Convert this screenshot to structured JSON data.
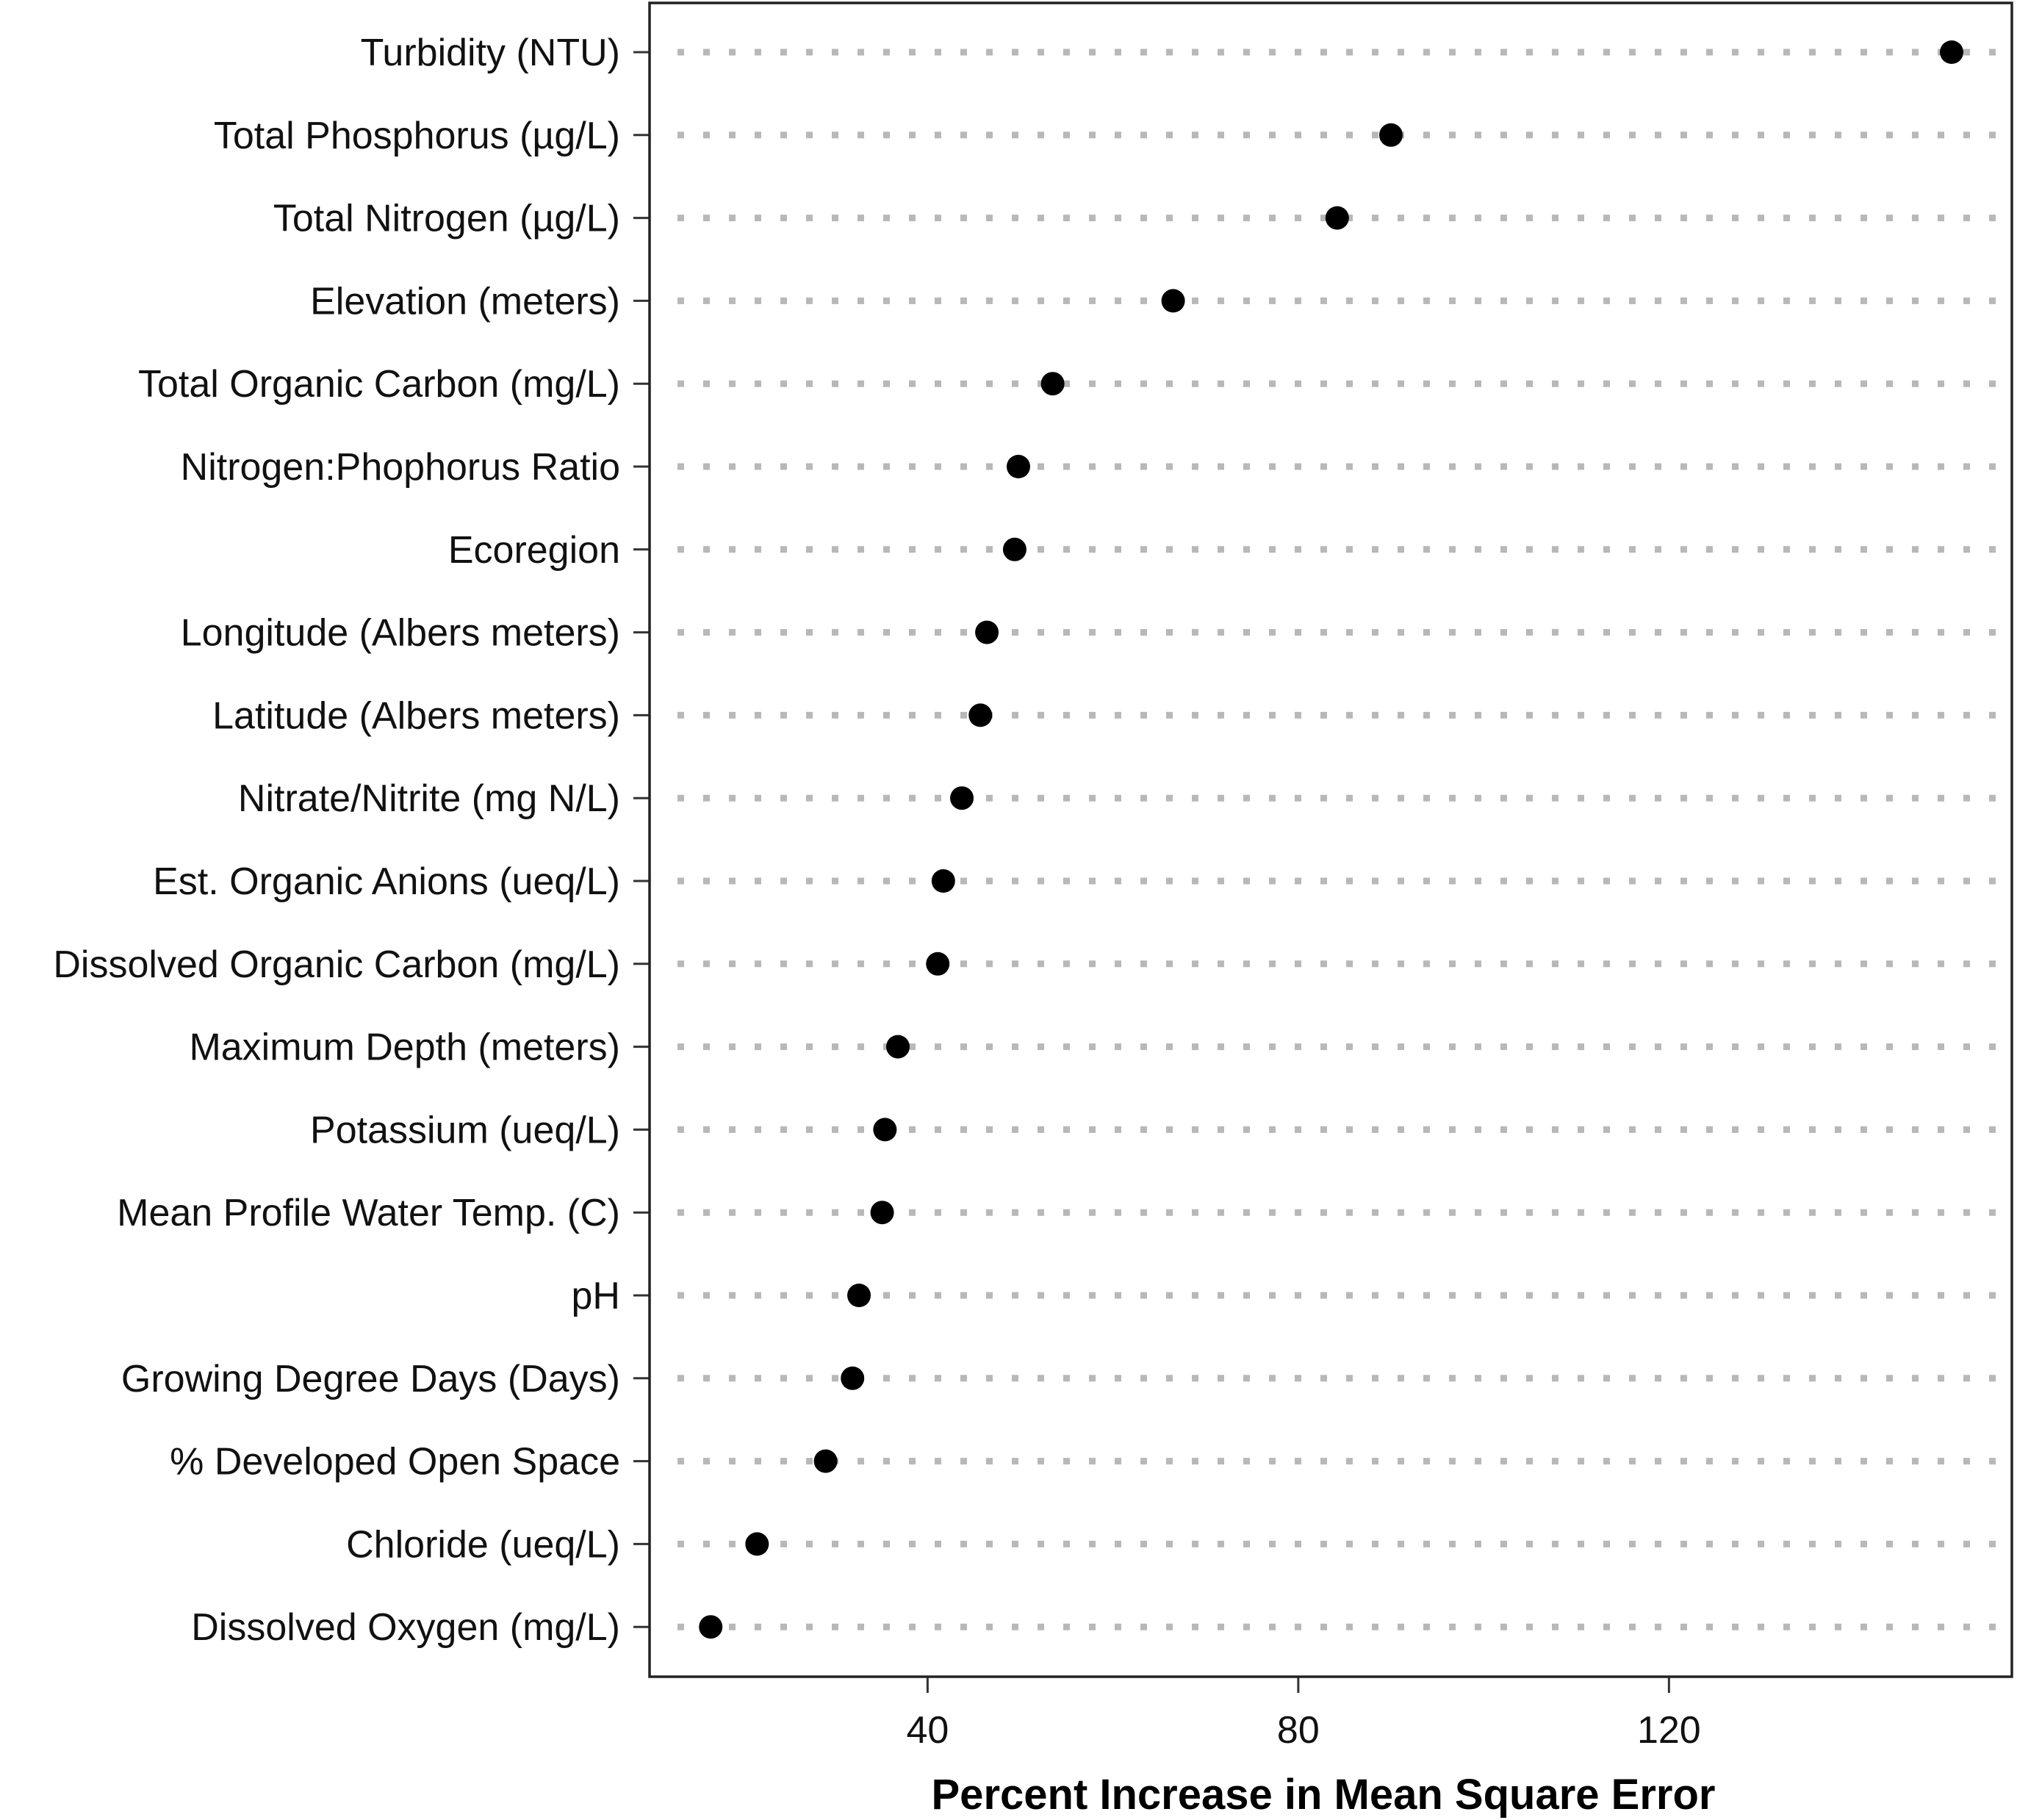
{
  "chart_data": {
    "type": "scatter",
    "title": "",
    "xlabel": "Percent Increase in Mean Square Error",
    "ylabel": "",
    "xlim": [
      10,
      157
    ],
    "x_ticks": [
      40,
      80,
      120
    ],
    "x_tick_labels": [
      "40",
      "80",
      "120"
    ],
    "grid": false,
    "legend": "none",
    "marker_color": "#000000",
    "guide_color": "#b8b8b8",
    "categories": [
      "Turbidity (NTU)",
      "Total Phosphorus (µg/L)",
      "Total Nitrogen (µg/L)",
      "Elevation (meters)",
      "Total Organic Carbon (mg/L)",
      "Nitrogen:Phophorus Ratio",
      "Ecoregion",
      "Longitude (Albers meters)",
      "Latitude  (Albers meters)",
      "Nitrate/Nitrite (mg N/L)",
      "Est. Organic Anions (ueq/L)",
      "Dissolved Organic Carbon (mg/L)",
      "Maximum Depth (meters)",
      "Potassium (ueq/L)",
      "Mean Profile Water Temp. (C)",
      "pH",
      "Growing Degree Days (Days)",
      "% Developed Open Space",
      "Chloride (ueq/L)",
      "Dissolved Oxygen (mg/L)"
    ],
    "values": [
      150.5,
      90.0,
      84.2,
      66.5,
      53.5,
      49.8,
      49.4,
      46.4,
      45.7,
      43.7,
      41.7,
      41.1,
      36.8,
      35.4,
      35.1,
      32.6,
      31.9,
      29.0,
      21.6,
      16.6
    ]
  }
}
